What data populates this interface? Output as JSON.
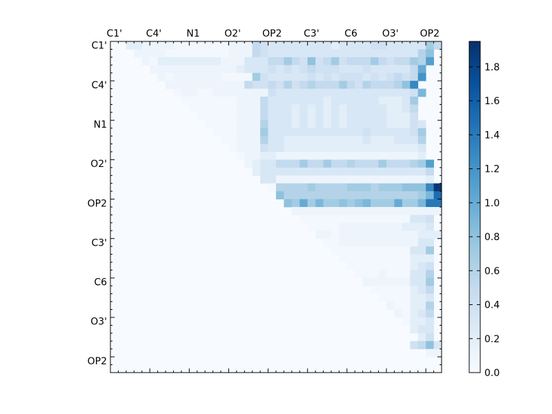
{
  "chart_data": {
    "type": "heatmap",
    "title": "",
    "xlabel": "",
    "ylabel": "",
    "size": 42,
    "tick_labels": [
      "C1'",
      "C4'",
      "N1",
      "O2'",
      "OP2",
      "C3'",
      "C6",
      "O3'",
      "OP2"
    ],
    "tick_indices": [
      0,
      5,
      10,
      15,
      20,
      25,
      30,
      35,
      40
    ],
    "colorbar": {
      "min": 0.0,
      "max": 1.95,
      "ticks": [
        0.0,
        0.2,
        0.4,
        0.6,
        0.8,
        1.0,
        1.2,
        1.4,
        1.6,
        1.8
      ],
      "tick_labels": [
        "0.0",
        "0.2",
        "0.4",
        "0.6",
        "0.8",
        "1.0",
        "1.2",
        "1.4",
        "1.6",
        "1.8"
      ],
      "colormap": "Blues"
    },
    "matrix_note": "upper-triangular distance matrix; rows i, columns j > i",
    "rows": [
      {
        "row": 0,
        "start": 2,
        "values": [
          0.2,
          0.2,
          0.1,
          0.1,
          0.1,
          0.1,
          0.05,
          0.05,
          0.05,
          0.05,
          0.05,
          0.05,
          0.05,
          0.1,
          0.1,
          0.1,
          0.5,
          0.4,
          0.3,
          0.3,
          0.3,
          0.3,
          0.3,
          0.3,
          0.3,
          0.3,
          0.2,
          0.3,
          0.3,
          0.3,
          0.3,
          0.4,
          0.4,
          0.3,
          0.3,
          0.3,
          0.3,
          0.3,
          0.7,
          0.5
        ]
      },
      {
        "row": 1,
        "start": 3,
        "values": [
          0.1,
          0.1,
          0.1,
          0.1,
          0.05,
          0.05,
          0.05,
          0.05,
          0.05,
          0.05,
          0.05,
          0.05,
          0.1,
          0.1,
          0.1,
          0.5,
          0.4,
          0.3,
          0.3,
          0.3,
          0.3,
          0.3,
          0.3,
          0.3,
          0.3,
          0.3,
          0.3,
          0.3,
          0.3,
          0.3,
          0.3,
          0.3,
          0.3,
          0.3,
          0.3,
          0.3,
          0.6,
          0.8
        ]
      },
      {
        "row": 2,
        "start": 4,
        "values": [
          0.1,
          0.05,
          0.2,
          0.2,
          0.2,
          0.2,
          0.2,
          0.2,
          0.2,
          0.2,
          0.1,
          0.1,
          0.1,
          0.3,
          0.3,
          0.3,
          0.5,
          0.5,
          0.7,
          0.5,
          0.4,
          0.8,
          0.4,
          0.5,
          0.7,
          0.4,
          0.5,
          0.5,
          0.5,
          0.7,
          0.5,
          0.4,
          0.5,
          0.5,
          0.7,
          0.6,
          1.1
        ]
      },
      {
        "row": 3,
        "start": 5,
        "values": [
          0.1,
          0.1,
          0.1,
          0.1,
          0.1,
          0.1,
          0.1,
          0.1,
          0.1,
          0.1,
          0.1,
          0.2,
          0.3,
          0.3,
          0.3,
          0.4,
          0.3,
          0.4,
          0.3,
          0.4,
          0.5,
          0.4,
          0.4,
          0.4,
          0.3,
          0.3,
          0.3,
          0.4,
          0.3,
          0.3,
          0.3,
          0.3,
          0.3,
          0.5,
          1.0
        ]
      },
      {
        "row": 4,
        "start": 6,
        "values": [
          0.1,
          0.05,
          0.1,
          0.1,
          0.1,
          0.1,
          0.1,
          0.1,
          0.05,
          0.05,
          0.05,
          0.05,
          0.7,
          0.4,
          0.3,
          0.3,
          0.3,
          0.3,
          0.3,
          0.4,
          0.3,
          0.4,
          0.3,
          0.4,
          0.4,
          0.4,
          0.3,
          0.4,
          0.3,
          0.4,
          0.5,
          0.4,
          0.5,
          1.2
        ]
      },
      {
        "row": 5,
        "start": 7,
        "values": [
          0.1,
          0.1,
          0.1,
          0.1,
          0.1,
          0.1,
          0.1,
          0.1,
          0.1,
          0.1,
          0.5,
          0.4,
          0.4,
          0.5,
          0.4,
          0.6,
          0.4,
          0.5,
          0.6,
          0.5,
          0.5,
          0.5,
          0.7,
          0.5,
          0.4,
          0.6,
          0.5,
          0.5,
          0.5,
          0.6,
          0.8,
          1.3
        ]
      },
      {
        "row": 6,
        "start": 8,
        "values": [
          0.05,
          0.1,
          0.1,
          0.05,
          0.05,
          0.1,
          0.1,
          0.1,
          0.1,
          0.1,
          0.1,
          0.1,
          0.4,
          0.3,
          0.3,
          0.3,
          0.3,
          0.3,
          0.3,
          0.3,
          0.3,
          0.3,
          0.3,
          0.3,
          0.3,
          0.3,
          0.3,
          0.3,
          0.3,
          0.3,
          0.4,
          0.9
        ]
      },
      {
        "row": 7,
        "start": 9,
        "values": [
          0.05,
          0.05,
          0.05,
          0.05,
          0.05,
          0.05,
          0.05,
          0.1,
          0.1,
          0.1,
          0.5,
          0.3,
          0.3,
          0.3,
          0.3,
          0.3,
          0.3,
          0.3,
          0.2,
          0.3,
          0.3,
          0.3,
          0.3,
          0.3,
          0.3,
          0.2,
          0.2,
          0.2,
          0.3,
          0.7
        ]
      },
      {
        "row": 8,
        "start": 10,
        "values": [
          0.05,
          0.05,
          0.05,
          0.05,
          0.05,
          0.05,
          0.1,
          0.1,
          0.1,
          0.5,
          0.3,
          0.3,
          0.3,
          0.2,
          0.3,
          0.2,
          0.3,
          0.2,
          0.3,
          0.2,
          0.3,
          0.3,
          0.3,
          0.3,
          0.3,
          0.2,
          0.2,
          0.3,
          0.5
        ]
      },
      {
        "row": 9,
        "start": 11,
        "values": [
          0.05,
          0.05,
          0.05,
          0.05,
          0.05,
          0.1,
          0.1,
          0.1,
          0.5,
          0.3,
          0.3,
          0.3,
          0.2,
          0.3,
          0.2,
          0.3,
          0.2,
          0.3,
          0.2,
          0.3,
          0.3,
          0.3,
          0.3,
          0.3,
          0.2,
          0.2,
          0.2,
          0.4
        ]
      },
      {
        "row": 10,
        "start": 12,
        "values": [
          0.05,
          0.05,
          0.05,
          0.05,
          0.1,
          0.1,
          0.1,
          0.6,
          0.3,
          0.3,
          0.3,
          0.2,
          0.3,
          0.2,
          0.3,
          0.2,
          0.3,
          0.2,
          0.3,
          0.3,
          0.3,
          0.3,
          0.3,
          0.2,
          0.2,
          0.2,
          0.4,
          0.3
        ]
      },
      {
        "row": 11,
        "start": 13,
        "values": [
          0.05,
          0.05,
          0.05,
          0.1,
          0.1,
          0.1,
          0.7,
          0.3,
          0.3,
          0.3,
          0.3,
          0.3,
          0.3,
          0.3,
          0.3,
          0.3,
          0.3,
          0.3,
          0.3,
          0.4,
          0.3,
          0.3,
          0.3,
          0.3,
          0.3,
          0.4,
          0.7
        ]
      },
      {
        "row": 12,
        "start": 14,
        "values": [
          0.05,
          0.05,
          0.1,
          0.1,
          0.1,
          0.6,
          0.3,
          0.3,
          0.2,
          0.2,
          0.2,
          0.2,
          0.2,
          0.2,
          0.2,
          0.2,
          0.2,
          0.2,
          0.3,
          0.2,
          0.2,
          0.2,
          0.3,
          0.3,
          0.3,
          0.6
        ]
      },
      {
        "row": 13,
        "start": 15,
        "values": [
          0.05,
          0.1,
          0.1,
          0.1,
          0.4,
          0.3,
          0.3,
          0.2,
          0.2,
          0.2,
          0.2,
          0.2,
          0.2,
          0.2,
          0.2,
          0.2,
          0.2,
          0.2,
          0.2,
          0.2,
          0.2,
          0.2,
          0.2,
          0.2,
          0.3
        ]
      },
      {
        "row": 14,
        "start": 16,
        "values": [
          0.05,
          0.1,
          0.1,
          0.2,
          0.2,
          0.1,
          0.1,
          0.1,
          0.1,
          0.1,
          0.1,
          0.1,
          0.1,
          0.1,
          0.1,
          0.1,
          0.1,
          0.1,
          0.1,
          0.1,
          0.1,
          0.1,
          0.1,
          0.2
        ]
      },
      {
        "row": 15,
        "start": 17,
        "values": [
          0.1,
          0.2,
          0.3,
          0.3,
          0.5,
          0.5,
          0.5,
          0.7,
          0.5,
          0.5,
          0.7,
          0.5,
          0.5,
          0.6,
          0.5,
          0.5,
          0.5,
          0.7,
          0.5,
          0.5,
          0.5,
          0.6,
          0.7,
          1.1
        ]
      },
      {
        "row": 16,
        "start": 18,
        "values": [
          0.2,
          0.3,
          0.3,
          0.3,
          0.3,
          0.3,
          0.3,
          0.3,
          0.3,
          0.3,
          0.3,
          0.3,
          0.3,
          0.3,
          0.3,
          0.3,
          0.3,
          0.3,
          0.3,
          0.3,
          0.3,
          0.3,
          0.5
        ]
      },
      {
        "row": 17,
        "start": 19,
        "values": [
          0.3,
          0.3,
          0.1,
          0.1,
          0.1,
          0.1,
          0.1,
          0.1,
          0.1,
          0.1,
          0.1,
          0.1,
          0.1,
          0.1,
          0.1,
          0.1,
          0.1,
          0.1,
          0.1,
          0.1,
          0.1,
          0.2
        ]
      },
      {
        "row": 18,
        "start": 20,
        "values": [
          0.05,
          0.6,
          0.6,
          0.6,
          0.6,
          0.7,
          0.6,
          0.6,
          0.6,
          0.6,
          0.7,
          0.7,
          0.7,
          0.6,
          0.7,
          0.7,
          0.7,
          0.8,
          0.8,
          0.8,
          1.3,
          1.9
        ]
      },
      {
        "row": 19,
        "start": 21,
        "values": [
          0.8,
          0.6,
          0.6,
          0.6,
          0.6,
          0.6,
          0.6,
          0.6,
          0.6,
          0.6,
          0.6,
          0.6,
          0.6,
          0.6,
          0.6,
          0.6,
          0.6,
          0.6,
          0.7,
          0.9,
          1.5
        ]
      },
      {
        "row": 20,
        "start": 22,
        "values": [
          0.8,
          0.7,
          1.0,
          0.7,
          0.9,
          0.7,
          0.7,
          0.8,
          0.7,
          0.8,
          0.9,
          0.7,
          0.7,
          0.7,
          1.0,
          0.7,
          0.7,
          0.9,
          1.4,
          1.4
        ]
      },
      {
        "row": 21,
        "start": 23,
        "values": [
          0.1,
          0.1,
          0.1,
          0.1,
          0.1,
          0.1,
          0.1,
          0.1,
          0.1,
          0.1,
          0.1,
          0.1,
          0.1,
          0.1,
          0.1,
          0.1,
          0.1,
          0.1,
          0.1
        ]
      },
      {
        "row": 22,
        "start": 24,
        "values": [
          0.05,
          0.05,
          0.05,
          0.05,
          0.05,
          0.05,
          0.05,
          0.05,
          0.05,
          0.05,
          0.05,
          0.05,
          0.05,
          0.05,
          0.3,
          0.3,
          0.4
        ]
      },
      {
        "row": 23,
        "start": 25,
        "values": [
          0.05,
          0.05,
          0.05,
          0.05,
          0.1,
          0.1,
          0.1,
          0.1,
          0.1,
          0.1,
          0.1,
          0.1,
          0.2,
          0.2,
          0.2,
          0.3
        ]
      },
      {
        "row": 24,
        "start": 26,
        "values": [
          0.1,
          0.1,
          0.05,
          0.1,
          0.1,
          0.1,
          0.1,
          0.1,
          0.1,
          0.1,
          0.1,
          0.1,
          0.1,
          0.2,
          0.2,
          0.2
        ]
      },
      {
        "row": 25,
        "start": 27,
        "values": [
          0.05,
          0.05,
          0.1,
          0.1,
          0.1,
          0.1,
          0.1,
          0.1,
          0.1,
          0.1,
          0.1,
          0.1,
          0.3,
          0.3
        ]
      },
      {
        "row": 26,
        "start": 28,
        "values": [
          0.05,
          0.05,
          0.05,
          0.05,
          0.05,
          0.05,
          0.05,
          0.05,
          0.05,
          0.05,
          0.3,
          0.3,
          0.7
        ]
      },
      {
        "row": 27,
        "start": 29,
        "values": [
          0.05,
          0.05,
          0.05,
          0.05,
          0.05,
          0.05,
          0.05,
          0.05,
          0.05,
          0.2,
          0.2,
          0.2
        ]
      },
      {
        "row": 28,
        "start": 30,
        "values": [
          0.05,
          0.05,
          0.05,
          0.05,
          0.05,
          0.05,
          0.05,
          0.05,
          0.2,
          0.3,
          0.4
        ]
      },
      {
        "row": 29,
        "start": 31,
        "values": [
          0.05,
          0.05,
          0.05,
          0.1,
          0.05,
          0.05,
          0.05,
          0.3,
          0.3,
          0.6
        ]
      },
      {
        "row": 30,
        "start": 32,
        "values": [
          0.1,
          0.1,
          0.1,
          0.1,
          0.1,
          0.1,
          0.3,
          0.3,
          0.7
        ]
      },
      {
        "row": 31,
        "start": 33,
        "values": [
          0.05,
          0.05,
          0.05,
          0.05,
          0.05,
          0.2,
          0.3,
          0.5
        ]
      },
      {
        "row": 32,
        "start": 34,
        "values": [
          0.05,
          0.05,
          0.05,
          0.05,
          0.2,
          0.2,
          0.3
        ]
      },
      {
        "row": 33,
        "start": 35,
        "values": [
          0.1,
          0.05,
          0.05,
          0.2,
          0.2,
          0.6
        ]
      },
      {
        "row": 34,
        "start": 36,
        "values": [
          0.1,
          0.05,
          0.2,
          0.3,
          0.5
        ]
      },
      {
        "row": 35,
        "start": 37,
        "values": [
          0.05,
          0.2,
          0.2,
          0.3
        ]
      },
      {
        "row": 36,
        "start": 38,
        "values": [
          0.2,
          0.3,
          0.3
        ]
      },
      {
        "row": 37,
        "start": 39,
        "values": [
          0.2,
          0.4
        ]
      },
      {
        "row": 38,
        "start": 38,
        "values": [
          0.4,
          0.5,
          0.8,
          0.3
        ]
      },
      {
        "row": 39,
        "start": 40,
        "values": [
          0.1,
          0.1
        ]
      }
    ]
  }
}
